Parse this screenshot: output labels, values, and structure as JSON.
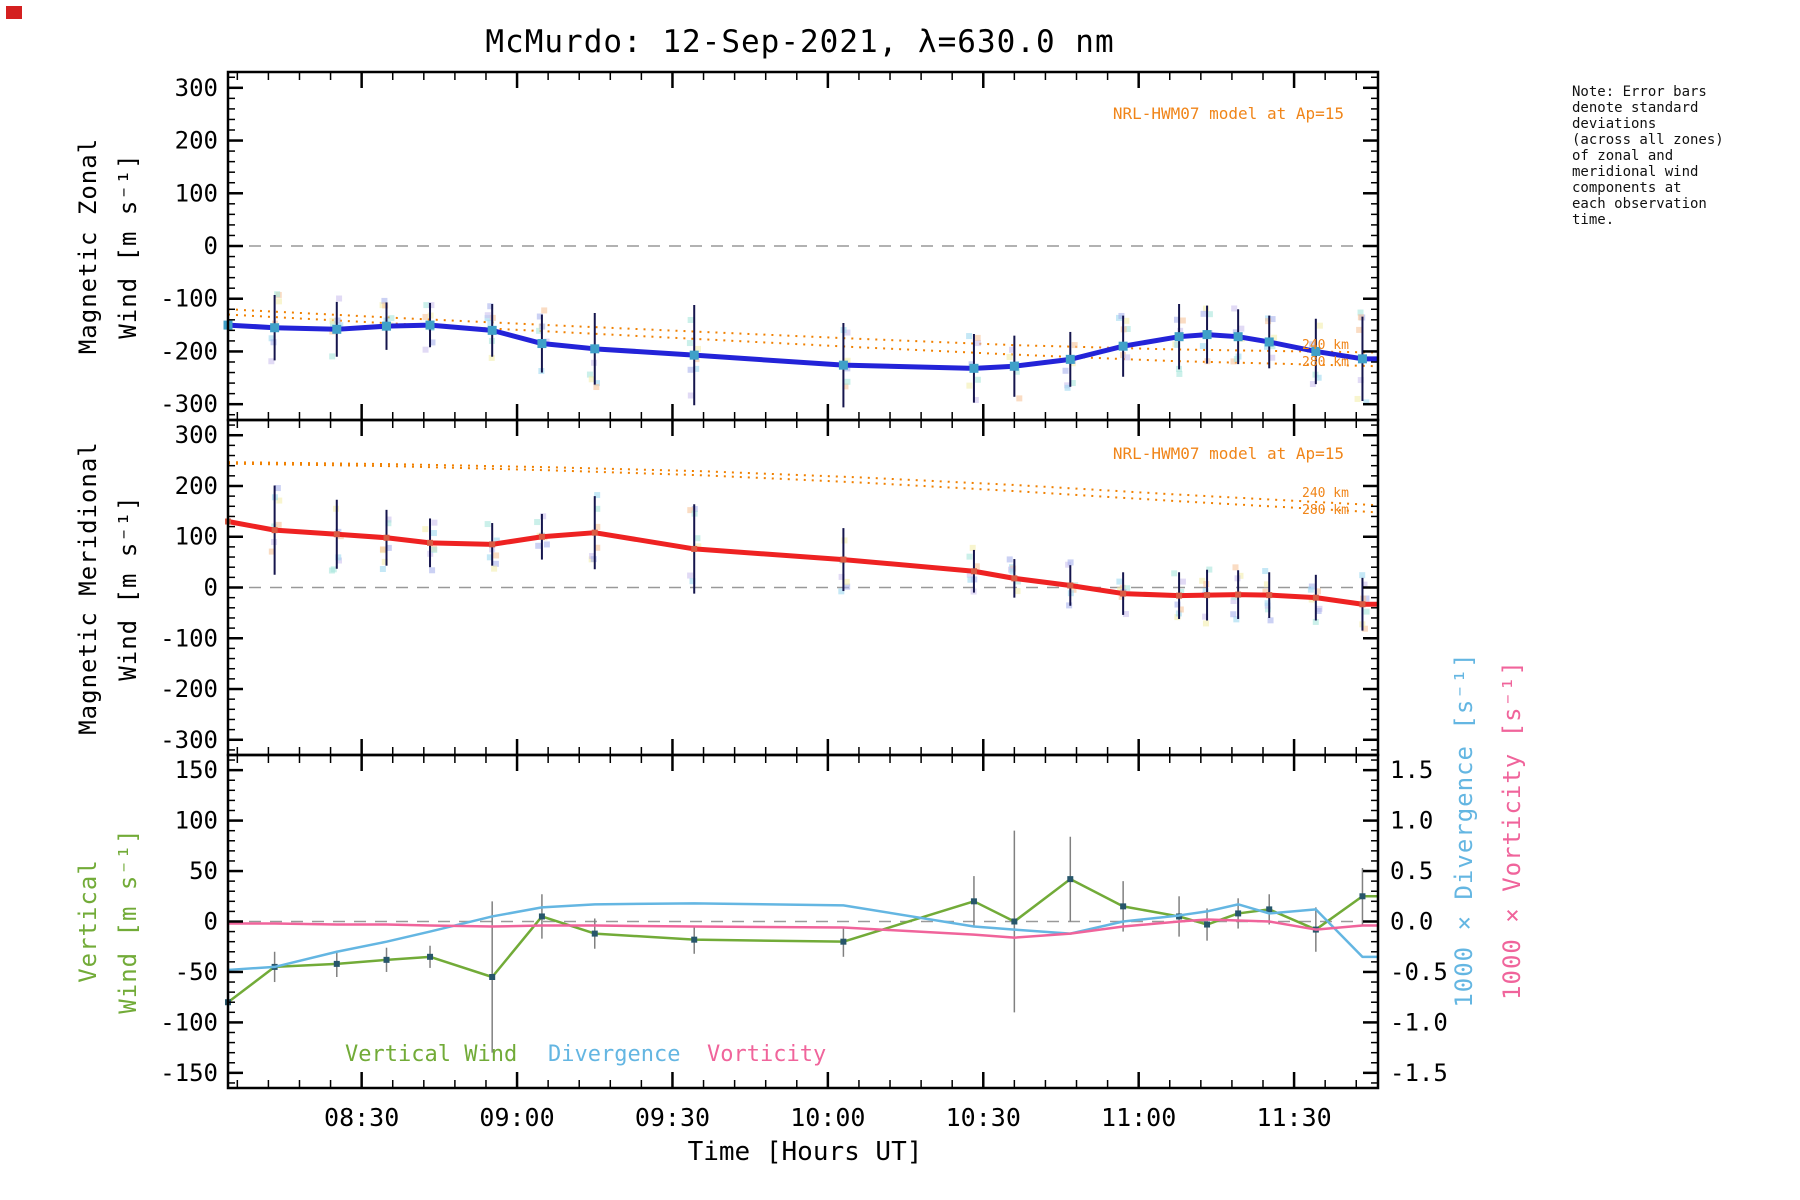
{
  "chart_data": {
    "type": "line",
    "title": "McMurdo: 12-Sep-2021, λ=630.0 nm",
    "xlabel": "Time [Hours UT]",
    "x_axis": {
      "range_hours": [
        8.07,
        11.77
      ],
      "major_ticks_hours": [
        8.5,
        9.0,
        9.5,
        10.0,
        10.5,
        11.0,
        11.5
      ],
      "major_tick_labels": [
        "08:30",
        "09:00",
        "09:30",
        "10:00",
        "10:30",
        "11:00",
        "11:30"
      ],
      "minor_step_hours": 0.1
    },
    "obs_times_hours": [
      8.07,
      8.22,
      8.42,
      8.58,
      8.72,
      8.92,
      9.08,
      9.25,
      9.57,
      10.05,
      10.47,
      10.6,
      10.78,
      10.95,
      11.13,
      11.22,
      11.32,
      11.42,
      11.57,
      11.72
    ],
    "panels": [
      {
        "id": "magnetic-zonal",
        "ylabel": [
          "Magnetic Zonal",
          "Wind [m s⁻¹]"
        ],
        "ylim": [
          -300,
          300
        ],
        "ytick_labels": [
          "300",
          "200",
          "100",
          "0",
          "-100",
          "-200",
          "-300"
        ],
        "ytick_values": [
          300,
          200,
          100,
          0,
          -100,
          -200,
          -300
        ],
        "ytick_minor_step": 20,
        "annotation": "NRL-HWM07 model at Ap=15",
        "series": [
          {
            "name": "zonal-wind",
            "color": "#2323d8",
            "marker_color": "#3fa0c8",
            "y": [
              -150,
              -155,
              -158,
              -152,
              -150,
              -160,
              -185,
              -195,
              -207,
              -226,
              -232,
              -228,
              -215,
              -190,
              -172,
              -168,
              -172,
              -182,
              -200,
              -214
            ],
            "err": [
              0,
              62,
              52,
              45,
              42,
              50,
              55,
              68,
              95,
              80,
              65,
              58,
              52,
              58,
              62,
              55,
              52,
              50,
              62,
              80
            ]
          }
        ],
        "model_lines": [
          {
            "name": "hwm07-240km",
            "label": "240 km",
            "x": [
              8.07,
              8.6,
              9.1,
              9.6,
              10.1,
              10.6,
              11.1,
              11.77
            ],
            "y": [
              -120,
              -136,
              -150,
              -163,
              -176,
              -188,
              -196,
              -202
            ]
          },
          {
            "name": "hwm07-280km",
            "label": "280 km",
            "x": [
              8.07,
              8.6,
              9.1,
              9.6,
              10.1,
              10.6,
              11.1,
              11.77
            ],
            "y": [
              -130,
              -147,
              -162,
              -177,
              -192,
              -206,
              -218,
              -228
            ]
          }
        ]
      },
      {
        "id": "magnetic-meridional",
        "ylabel": [
          "Magnetic Meridional",
          "Wind [m s⁻¹]"
        ],
        "ylim": [
          -300,
          300
        ],
        "ytick_labels": [
          "300",
          "200",
          "100",
          "0",
          "-100",
          "-200",
          "-300"
        ],
        "ytick_values": [
          300,
          200,
          100,
          0,
          -100,
          -200,
          -300
        ],
        "ytick_minor_step": 20,
        "annotation": "NRL-HWM07 model at Ap=15",
        "series": [
          {
            "name": "meridional-wind",
            "color": "#ee2222",
            "marker_color": "#d95b43",
            "y": [
              130,
              113,
              105,
              98,
              88,
              85,
              100,
              108,
              76,
              55,
              32,
              18,
              4,
              -12,
              -16,
              -15,
              -14,
              -15,
              -20,
              -33
            ],
            "err": [
              0,
              88,
              68,
              55,
              48,
              42,
              45,
              72,
              88,
              62,
              42,
              38,
              40,
              42,
              46,
              50,
              48,
              45,
              45,
              52
            ]
          }
        ],
        "model_lines": [
          {
            "name": "hwm07-240km",
            "label": "240 km",
            "x": [
              8.07,
              8.6,
              9.1,
              9.6,
              10.1,
              10.6,
              11.1,
              11.77
            ],
            "y": [
              247,
              243,
              237,
              229,
              217,
              202,
              184,
              162
            ]
          },
          {
            "name": "hwm07-280km",
            "label": "280 km",
            "x": [
              8.07,
              8.6,
              9.1,
              9.6,
              10.1,
              10.6,
              11.1,
              11.77
            ],
            "y": [
              244,
              239,
              231,
              221,
              207,
              190,
              171,
              148
            ]
          }
        ]
      },
      {
        "id": "vertical-divergence-vorticity",
        "ylabel": [
          "Vertical",
          "Wind [m s⁻¹]"
        ],
        "ylabel_right": [
          "1000 × Divergence [s⁻¹]",
          "1000 × Vorticity [s⁻¹]"
        ],
        "ylim": [
          -150,
          150
        ],
        "ylim_right": [
          -1.5,
          1.5
        ],
        "ytick_labels": [
          "150",
          "100",
          "50",
          "0",
          "-50",
          "-100",
          "-150"
        ],
        "ytick_values": [
          150,
          100,
          50,
          0,
          -50,
          -100,
          -150
        ],
        "ytick_labels_right": [
          "1.5",
          "1.0",
          "0.5",
          "0.0",
          "-0.5",
          "-1.0",
          "-1.5"
        ],
        "ytick_minor_step": 10,
        "series": [
          {
            "name": "vertical-wind",
            "color": "#72ab38",
            "marker_color": "#27566b",
            "y": [
              -80,
              -45,
              -42,
              -38,
              -35,
              -55,
              5,
              -12,
              -18,
              -20,
              20,
              0,
              42,
              15,
              5,
              -3,
              8,
              12,
              -8,
              25
            ],
            "err": [
              0,
              15,
              13,
              12,
              11,
              75,
              22,
              15,
              14,
              15,
              25,
              90,
              42,
              25,
              20,
              16,
              15,
              15,
              22,
              28
            ]
          },
          {
            "name": "divergence",
            "color": "#64b6e2",
            "scale": 100,
            "y": [
              -0.48,
              -0.45,
              -0.3,
              -0.2,
              -0.1,
              0.05,
              0.14,
              0.17,
              0.18,
              0.16,
              -0.05,
              -0.08,
              -0.12,
              0.0,
              0.06,
              0.1,
              0.17,
              0.08,
              0.12,
              -0.35
            ]
          },
          {
            "name": "vorticity",
            "color": "#f0649b",
            "scale": 100,
            "y": [
              -0.02,
              -0.02,
              -0.03,
              -0.03,
              -0.04,
              -0.05,
              -0.04,
              -0.04,
              -0.05,
              -0.06,
              -0.13,
              -0.16,
              -0.12,
              -0.05,
              0.0,
              0.02,
              0.01,
              0.0,
              -0.08,
              -0.04
            ]
          }
        ]
      }
    ],
    "legend": [
      {
        "label": "Vertical Wind",
        "color": "#72ab38"
      },
      {
        "label": "Divergence",
        "color": "#64b6e2"
      },
      {
        "label": "Vorticity",
        "color": "#f0649b"
      }
    ],
    "note_lines": [
      "Note: Error bars",
      "denote standard",
      "deviations",
      "(across all zones)",
      "of zonal and",
      "meridional wind",
      "components at",
      "each observation",
      "time."
    ],
    "colors": {
      "zonal_line": "#2323d8",
      "meridional_line": "#ee2222",
      "model_orange": "#f08000",
      "annotation_orange": "#f08519",
      "vertical_green": "#72ab38",
      "divergence_blue": "#64b6e2",
      "vorticity_pink": "#f0649b",
      "errorbar_navy": "#15154d",
      "errorbar_gray": "#808080",
      "zero_dash_gray": "#999999",
      "scatter_palette": [
        "#a9b2ec",
        "#f7c59b",
        "#a8e6dc",
        "#f3eeae",
        "#cdc2ef",
        "#9fd8f0"
      ]
    }
  }
}
